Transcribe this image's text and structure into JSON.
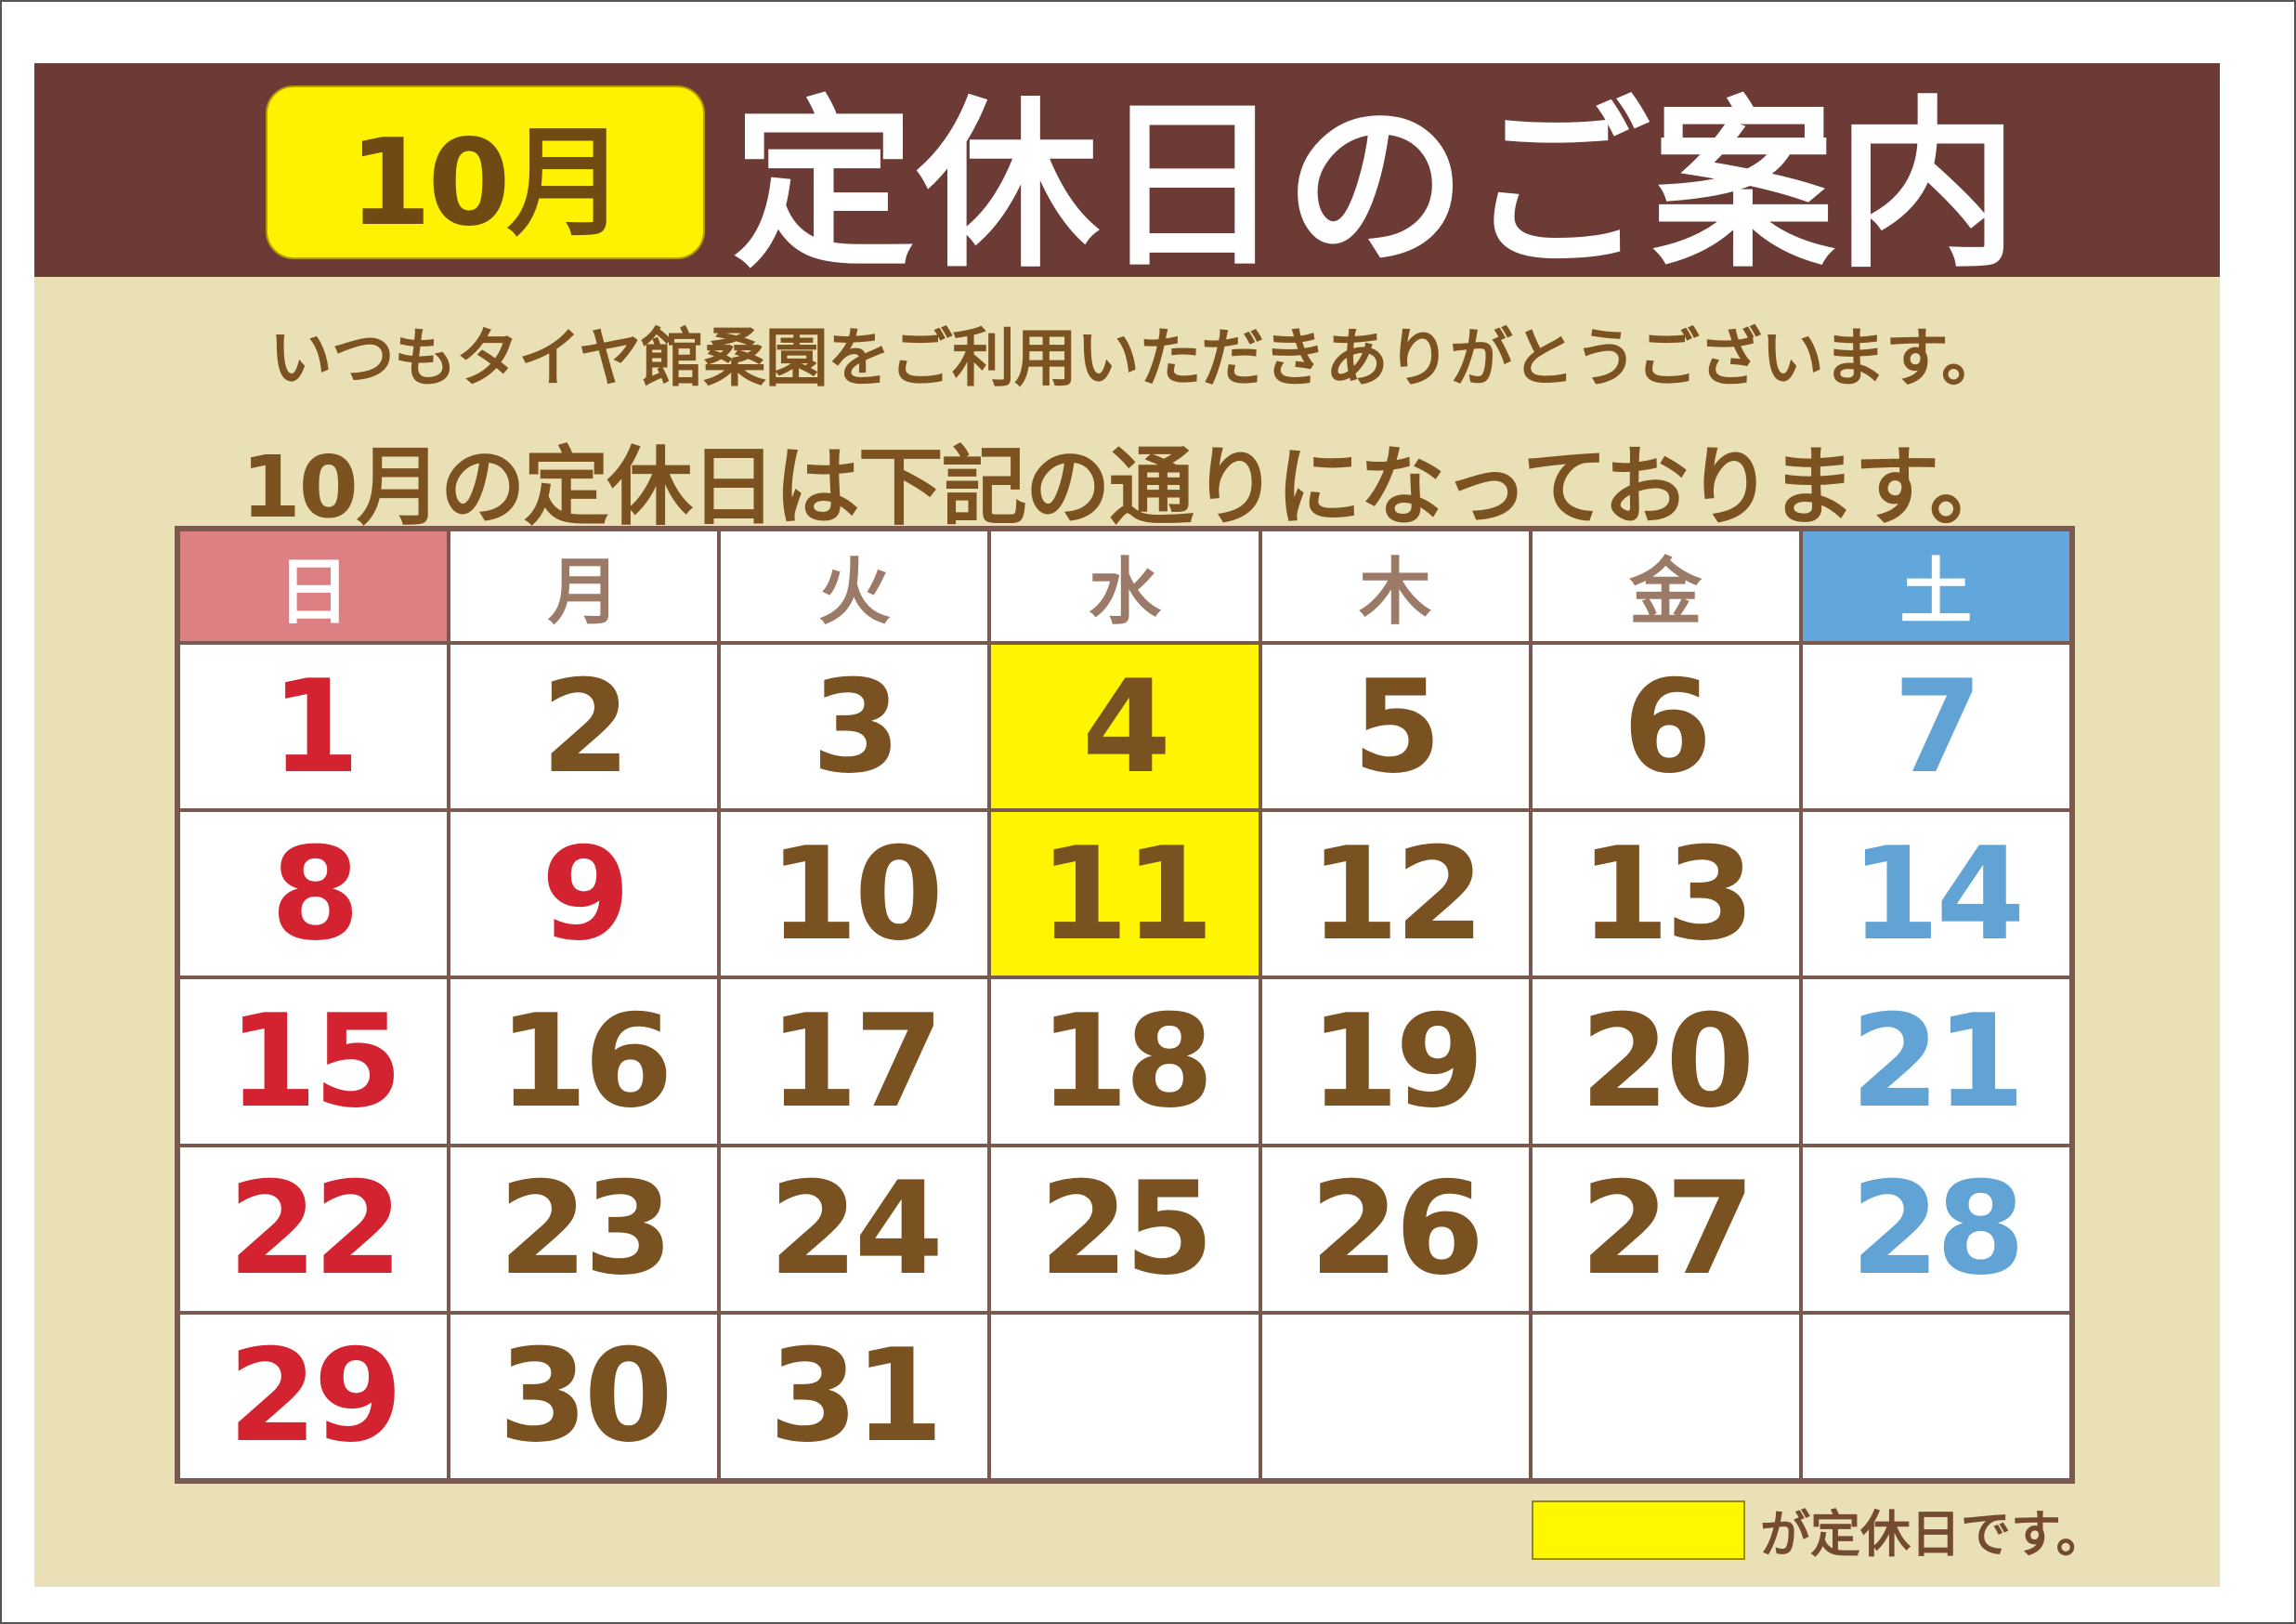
{
  "header": {
    "month_badge": "10月",
    "title": "定休日のご案内"
  },
  "message": {
    "line1": "いつもタイヤ館桑園をご利用いただきありがとうございます。",
    "line2": "10月の定休日は下記の通りになっております。"
  },
  "calendar": {
    "weekdays": [
      "日",
      "月",
      "火",
      "水",
      "木",
      "金",
      "土"
    ],
    "weeks": [
      [
        "1",
        "2",
        "3",
        "4",
        "5",
        "6",
        "7"
      ],
      [
        "8",
        "9",
        "10",
        "11",
        "12",
        "13",
        "14"
      ],
      [
        "15",
        "16",
        "17",
        "18",
        "19",
        "20",
        "21"
      ],
      [
        "22",
        "23",
        "24",
        "25",
        "26",
        "27",
        "28"
      ],
      [
        "29",
        "30",
        "31",
        "",
        "",
        "",
        ""
      ]
    ],
    "holidays_red": [
      "9"
    ],
    "closed_days": [
      "4",
      "11"
    ]
  },
  "legend": {
    "text": "が定休日です。"
  },
  "colors": {
    "band": "#6c3b35",
    "background": "#e9e0b6",
    "closed": "#fff500",
    "sunday": "#d42330",
    "saturday": "#62a3d6",
    "text": "#7a5120"
  }
}
